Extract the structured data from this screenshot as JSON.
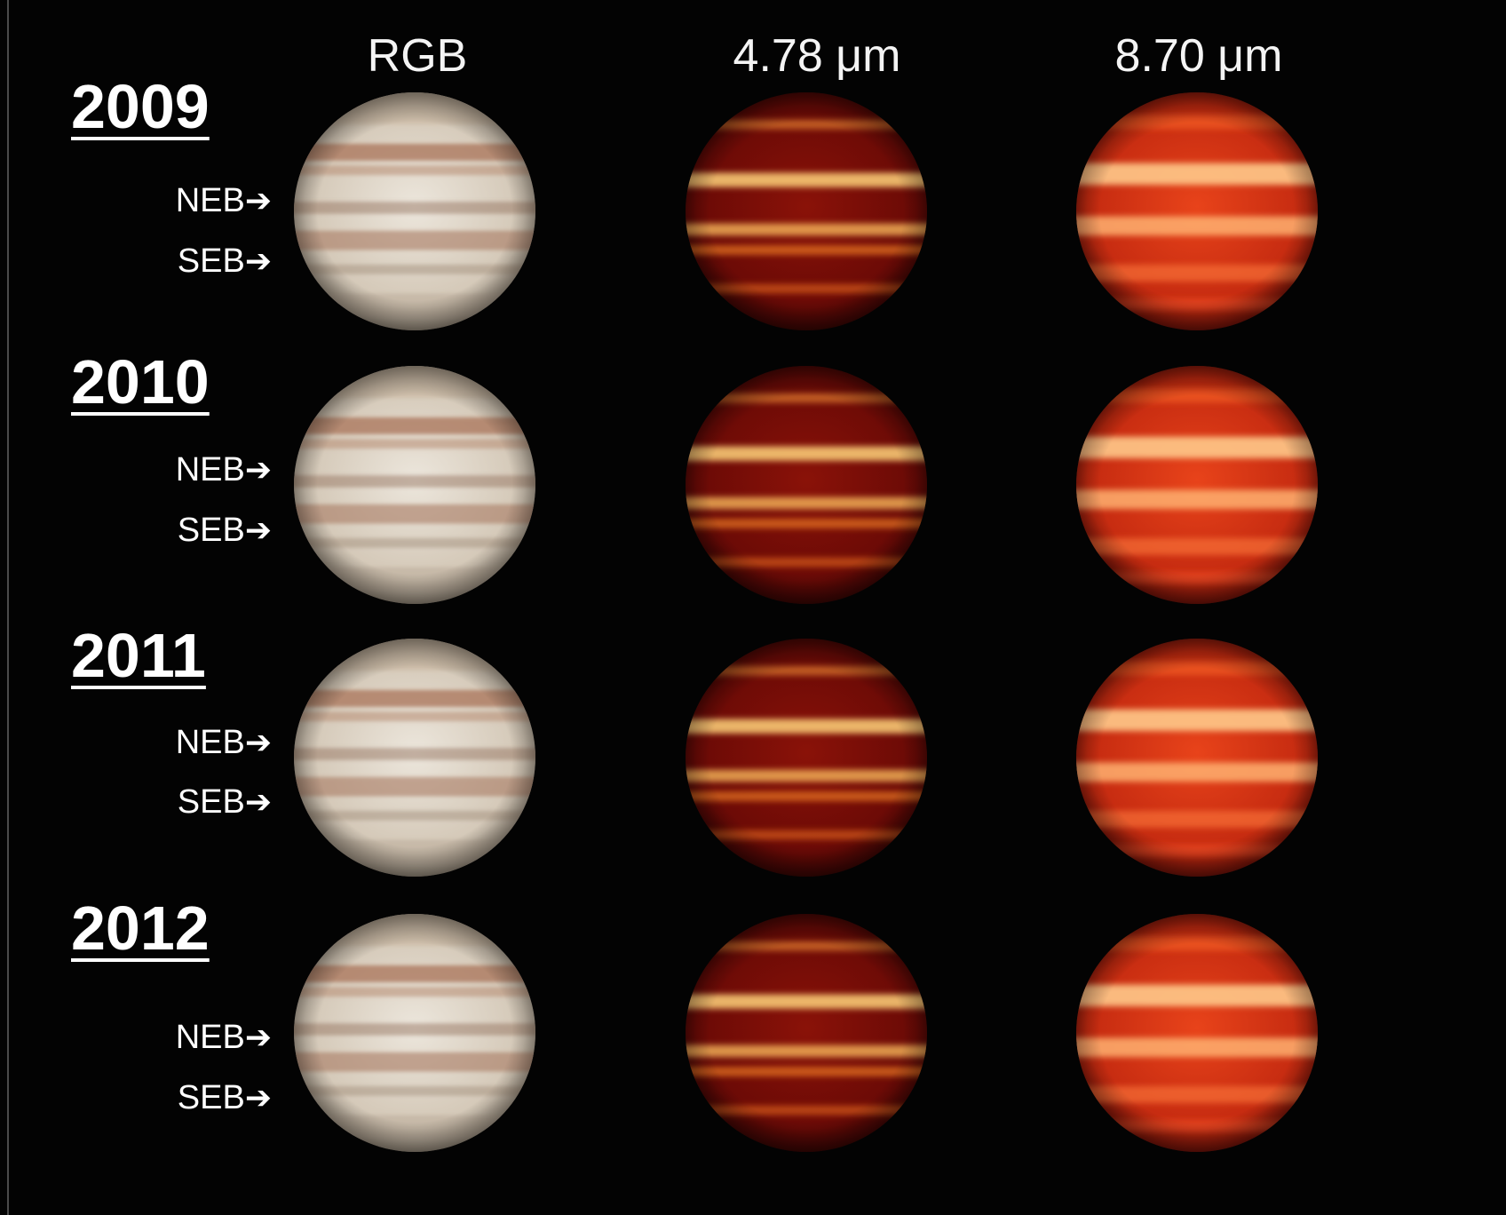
{
  "headers": {
    "rgb": "RGB",
    "ir1": "4.78 μm",
    "ir2": "8.70 μm"
  },
  "rows": [
    {
      "year": "2009",
      "neb": "NEB",
      "seb": "SEB"
    },
    {
      "year": "2010",
      "neb": "NEB",
      "seb": "SEB"
    },
    {
      "year": "2011",
      "neb": "NEB",
      "seb": "SEB"
    },
    {
      "year": "2012",
      "neb": "NEB",
      "seb": "SEB"
    }
  ],
  "arrow_glyph": "➔",
  "colors": {
    "background": "#030303",
    "label_text": "#ffffff",
    "rgb_planet": "#d8cdbd",
    "rgb_belt": "#a8735a",
    "ir_dark": "#5a0606",
    "ir_bright": "#ffd27a"
  }
}
